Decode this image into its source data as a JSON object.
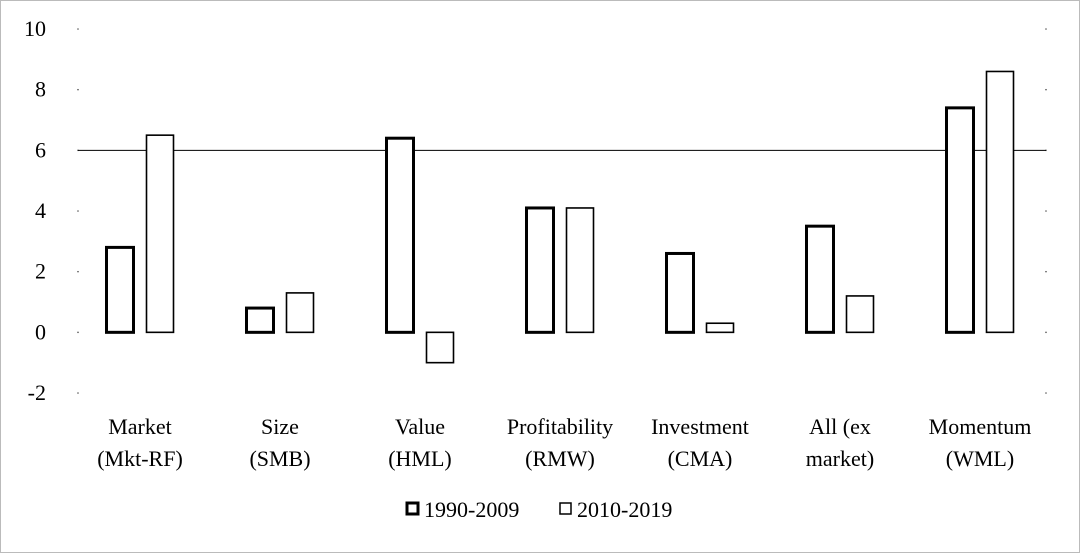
{
  "chart_data": {
    "type": "bar",
    "categories": [
      [
        "Market",
        "(Mkt-RF)"
      ],
      [
        "Size",
        "(SMB)"
      ],
      [
        "Value",
        "(HML)"
      ],
      [
        "Profitability",
        "(RMW)"
      ],
      [
        "Investment",
        "(CMA)"
      ],
      [
        "All (ex",
        "market)"
      ],
      [
        "Momentum",
        "(WML)"
      ]
    ],
    "series": [
      {
        "name": "1990-2009",
        "values": [
          2.8,
          0.8,
          6.4,
          4.1,
          2.6,
          3.5,
          7.4
        ],
        "stroke": "#000000",
        "stroke_weight": "thick"
      },
      {
        "name": "2010-2019",
        "values": [
          6.5,
          1.3,
          -1.0,
          4.1,
          0.3,
          1.2,
          8.6
        ],
        "stroke": "#000000",
        "stroke_weight": "thin"
      }
    ],
    "ylim": [
      -2,
      10
    ],
    "yticks": [
      "10",
      "8",
      "6",
      "4",
      "2",
      "0",
      "-2"
    ],
    "reference_line": 6,
    "legend_position": "bottom-center",
    "fill": "#ffffff"
  }
}
